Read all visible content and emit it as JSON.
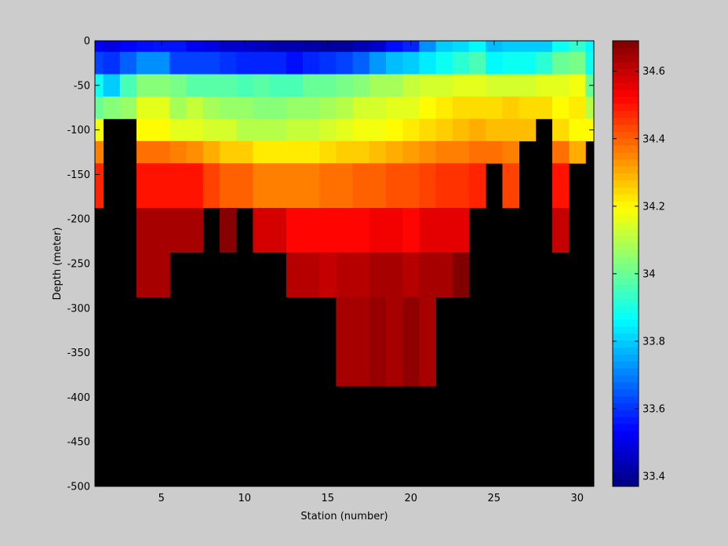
{
  "chart_data": {
    "type": "heatmap",
    "title": "",
    "xlabel": "Station (number)",
    "ylabel": "Depth (meter)",
    "x": [
      1,
      2,
      3,
      4,
      5,
      6,
      7,
      8,
      9,
      10,
      11,
      12,
      13,
      14,
      15,
      16,
      17,
      18,
      19,
      20,
      21,
      22,
      23,
      24,
      25,
      26,
      27,
      28,
      29,
      30,
      31
    ],
    "y": [
      0,
      -25,
      -50,
      -75,
      -100,
      -125,
      -150,
      -175,
      -200,
      -225,
      -250,
      -275,
      -300,
      -325,
      -350,
      -375,
      -400,
      -425,
      -450,
      -475,
      -500
    ],
    "xlim": [
      1,
      31
    ],
    "ylim": [
      -500,
      0
    ],
    "xticks": [
      5,
      10,
      15,
      20,
      25,
      30
    ],
    "yticks": [
      0,
      -50,
      -100,
      -150,
      -200,
      -250,
      -300,
      -350,
      -400,
      -450,
      -500
    ],
    "colorbar": {
      "label": "",
      "lim": [
        33.37,
        34.69
      ],
      "ticks": [
        33.4,
        33.6,
        33.8,
        34,
        34.2,
        34.4,
        34.6
      ],
      "colormap": "jet"
    },
    "masked_color": "#000000",
    "grid": false,
    "values": [
      [
        33.52,
        33.5,
        33.54,
        33.55,
        33.56,
        33.56,
        33.52,
        33.5,
        33.47,
        33.47,
        33.45,
        33.43,
        33.43,
        33.42,
        33.41,
        33.41,
        33.44,
        33.47,
        33.55,
        33.58,
        33.72,
        33.8,
        33.82,
        33.86,
        33.78,
        33.8,
        33.8,
        33.8,
        33.88,
        33.93,
        33.86
      ],
      [
        33.62,
        33.6,
        33.66,
        33.72,
        33.72,
        33.62,
        33.62,
        33.62,
        33.6,
        33.58,
        33.58,
        33.58,
        33.55,
        33.58,
        33.6,
        33.62,
        33.66,
        33.73,
        33.78,
        33.8,
        33.84,
        33.88,
        33.92,
        33.96,
        33.86,
        33.88,
        33.88,
        33.92,
        34.0,
        34.02,
        33.88
      ],
      [
        33.88,
        33.8,
        33.96,
        34.04,
        34.04,
        34.02,
        33.98,
        33.98,
        33.98,
        33.96,
        33.98,
        33.96,
        33.96,
        34.0,
        34.0,
        34.02,
        34.04,
        34.08,
        34.08,
        34.12,
        34.14,
        34.14,
        34.16,
        34.16,
        34.14,
        34.14,
        34.14,
        34.16,
        34.16,
        34.18,
        34.0
      ],
      [
        34.0,
        34.04,
        34.06,
        34.16,
        34.16,
        34.08,
        34.12,
        34.08,
        34.06,
        34.06,
        34.04,
        34.04,
        34.06,
        34.06,
        34.08,
        34.1,
        34.14,
        34.14,
        34.16,
        34.16,
        34.2,
        34.22,
        34.24,
        34.24,
        34.24,
        34.26,
        34.24,
        34.24,
        34.2,
        34.22,
        34.1
      ],
      [
        34.18,
        null,
        null,
        34.2,
        34.2,
        34.16,
        34.16,
        34.14,
        34.14,
        34.1,
        34.1,
        34.1,
        34.12,
        34.12,
        34.14,
        34.16,
        34.18,
        34.18,
        34.2,
        34.22,
        34.24,
        34.26,
        34.28,
        34.3,
        34.28,
        34.28,
        34.28,
        null,
        34.24,
        34.2,
        34.2
      ],
      [
        34.36,
        null,
        null,
        34.38,
        34.38,
        34.36,
        34.34,
        34.3,
        34.26,
        34.26,
        34.22,
        34.22,
        34.22,
        34.22,
        34.24,
        34.26,
        34.26,
        34.28,
        34.3,
        34.32,
        34.34,
        34.36,
        34.36,
        34.38,
        34.38,
        34.36,
        null,
        null,
        34.38,
        34.3,
        null
      ],
      [
        34.48,
        null,
        null,
        34.5,
        34.5,
        34.5,
        34.5,
        34.44,
        34.4,
        34.4,
        34.36,
        34.36,
        34.36,
        34.36,
        34.38,
        34.38,
        34.4,
        34.4,
        34.42,
        34.42,
        34.44,
        34.46,
        34.46,
        34.48,
        null,
        34.44,
        null,
        null,
        34.5,
        null,
        null
      ],
      [
        34.48,
        null,
        null,
        34.5,
        34.5,
        34.5,
        34.5,
        34.44,
        34.4,
        34.4,
        34.36,
        34.36,
        34.36,
        34.36,
        34.38,
        34.38,
        34.4,
        34.4,
        34.42,
        34.42,
        34.44,
        34.46,
        34.46,
        34.48,
        null,
        34.44,
        null,
        null,
        34.5,
        null,
        null
      ],
      [
        null,
        null,
        null,
        34.64,
        34.64,
        34.64,
        34.64,
        null,
        34.68,
        null,
        34.58,
        34.58,
        34.52,
        34.52,
        34.52,
        34.52,
        34.52,
        34.54,
        34.54,
        34.52,
        34.56,
        34.56,
        34.56,
        null,
        null,
        null,
        null,
        null,
        34.6,
        null,
        null
      ],
      [
        null,
        null,
        null,
        34.64,
        34.64,
        34.64,
        34.64,
        null,
        34.68,
        null,
        34.58,
        34.58,
        34.52,
        34.52,
        34.52,
        34.52,
        34.52,
        34.54,
        34.54,
        34.52,
        34.56,
        34.56,
        34.56,
        null,
        null,
        null,
        null,
        null,
        34.6,
        null,
        null
      ],
      [
        null,
        null,
        null,
        34.64,
        34.64,
        null,
        null,
        null,
        null,
        null,
        null,
        null,
        34.62,
        34.62,
        34.6,
        34.62,
        34.62,
        34.64,
        34.64,
        34.62,
        34.64,
        34.64,
        34.69,
        null,
        null,
        null,
        null,
        null,
        null,
        null,
        null
      ],
      [
        null,
        null,
        null,
        34.64,
        34.64,
        null,
        null,
        null,
        null,
        null,
        null,
        null,
        34.62,
        34.62,
        34.6,
        34.62,
        34.62,
        34.64,
        34.64,
        34.62,
        34.64,
        34.64,
        34.69,
        null,
        null,
        null,
        null,
        null,
        null,
        null,
        null
      ],
      [
        null,
        null,
        null,
        null,
        null,
        null,
        null,
        null,
        null,
        null,
        null,
        null,
        null,
        null,
        null,
        34.64,
        34.64,
        34.66,
        34.64,
        34.67,
        34.64,
        null,
        null,
        null,
        null,
        null,
        null,
        null,
        null,
        null,
        null
      ],
      [
        null,
        null,
        null,
        null,
        null,
        null,
        null,
        null,
        null,
        null,
        null,
        null,
        null,
        null,
        null,
        34.64,
        34.64,
        34.66,
        34.64,
        34.67,
        34.64,
        null,
        null,
        null,
        null,
        null,
        null,
        null,
        null,
        null,
        null
      ],
      [
        null,
        null,
        null,
        null,
        null,
        null,
        null,
        null,
        null,
        null,
        null,
        null,
        null,
        null,
        null,
        34.64,
        34.64,
        34.66,
        34.64,
        34.67,
        34.64,
        null,
        null,
        null,
        null,
        null,
        null,
        null,
        null,
        null,
        null
      ],
      [
        null,
        null,
        null,
        null,
        null,
        null,
        null,
        null,
        null,
        null,
        null,
        null,
        null,
        null,
        null,
        34.64,
        34.64,
        34.66,
        34.64,
        34.67,
        34.64,
        null,
        null,
        null,
        null,
        null,
        null,
        null,
        null,
        null,
        null
      ],
      [
        null,
        null,
        null,
        null,
        null,
        null,
        null,
        null,
        null,
        null,
        null,
        null,
        null,
        null,
        null,
        null,
        null,
        null,
        null,
        null,
        null,
        null,
        null,
        null,
        null,
        null,
        null,
        null,
        null,
        null,
        null
      ],
      [
        null,
        null,
        null,
        null,
        null,
        null,
        null,
        null,
        null,
        null,
        null,
        null,
        null,
        null,
        null,
        null,
        null,
        null,
        null,
        null,
        null,
        null,
        null,
        null,
        null,
        null,
        null,
        null,
        null,
        null,
        null
      ],
      [
        null,
        null,
        null,
        null,
        null,
        null,
        null,
        null,
        null,
        null,
        null,
        null,
        null,
        null,
        null,
        null,
        null,
        null,
        null,
        null,
        null,
        null,
        null,
        null,
        null,
        null,
        null,
        null,
        null,
        null,
        null
      ],
      [
        null,
        null,
        null,
        null,
        null,
        null,
        null,
        null,
        null,
        null,
        null,
        null,
        null,
        null,
        null,
        null,
        null,
        null,
        null,
        null,
        null,
        null,
        null,
        null,
        null,
        null,
        null,
        null,
        null,
        null,
        null
      ],
      [
        null,
        null,
        null,
        null,
        null,
        null,
        null,
        null,
        null,
        null,
        null,
        null,
        null,
        null,
        null,
        null,
        null,
        null,
        null,
        null,
        null,
        null,
        null,
        null,
        null,
        null,
        null,
        null,
        null,
        null,
        null
      ]
    ]
  }
}
